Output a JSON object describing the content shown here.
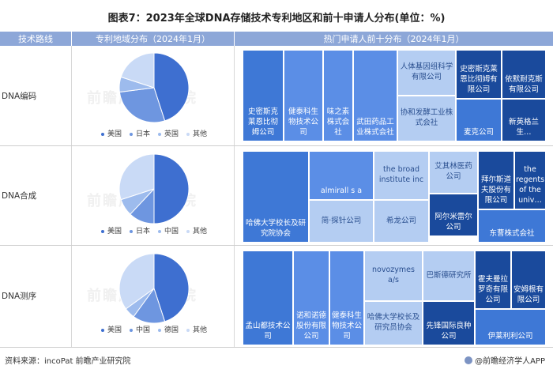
{
  "title": "图表7：2023年全球DNA存储技术专利地区和前十申请人分布(单位：%)",
  "headers": {
    "col1": "技术路线",
    "col2": "专利地域分布（2024年1月）",
    "col3": "热门申请人前十分布（2024年1月）"
  },
  "footer": {
    "source": "资料来源：incoPat 前瞻产业研究院",
    "brand": "@前瞻经济学人APP"
  },
  "watermark": "前瞻产业研究院",
  "colors": {
    "dark": "#1a4a9c",
    "mid": "#3e78d6",
    "blue": "#5b8ee6",
    "light": "#b4cdf2",
    "header": "#8da7d8"
  },
  "chart_data": [
    {
      "type": "pie",
      "route": "DNA编码",
      "title": "",
      "categories": [
        "美国",
        "日本",
        "英国",
        "其他"
      ],
      "values": [
        45,
        28,
        7,
        20
      ],
      "colors": [
        "#3e6fd0",
        "#6e96e0",
        "#9dbbed",
        "#c9daf6"
      ]
    },
    {
      "type": "pie",
      "route": "DNA合成",
      "title": "",
      "categories": [
        "美国",
        "日本",
        "中国",
        "其他"
      ],
      "values": [
        50,
        12,
        8,
        30
      ],
      "colors": [
        "#3e6fd0",
        "#6e96e0",
        "#9dbbed",
        "#c9daf6"
      ]
    },
    {
      "type": "pie",
      "route": "DNA测序",
      "title": "",
      "categories": [
        "美国",
        "中国",
        "德国",
        "其他"
      ],
      "values": [
        45,
        15,
        5,
        35
      ],
      "colors": [
        "#3e6fd0",
        "#6e96e0",
        "#9dbbed",
        "#c9daf6"
      ]
    }
  ],
  "treemaps": [
    {
      "route": "DNA编码",
      "cells": [
        {
          "label": "史密斯克莱恩比彻姆公司",
          "shade": "mid"
        },
        {
          "label": "健泰科生物技术公司",
          "shade": "blue"
        },
        {
          "label": "味之素株式会社",
          "shade": "blue"
        },
        {
          "label": "武田药品工业株式会社",
          "shade": "blue"
        },
        {
          "label": "人体基因组科学有限公司",
          "shade": "light"
        },
        {
          "label": "协和发酵工业株式会社",
          "shade": "light"
        },
        {
          "label": "史密斯克莱恩比彻姆有限公司",
          "shade": "dark"
        },
        {
          "label": "依默耐克斯有限公司",
          "shade": "dark"
        },
        {
          "label": "麦克公司",
          "shade": "mid"
        },
        {
          "label": "新英格兰生…",
          "shade": "dark"
        }
      ]
    },
    {
      "route": "DNA合成",
      "cells": [
        {
          "label": "哈佛大学校长及研究院协会",
          "shade": "mid"
        },
        {
          "label": "almirall s a",
          "shade": "blue"
        },
        {
          "label": "简·探针公司",
          "shade": "light"
        },
        {
          "label": "the broad institute inc",
          "shade": "light"
        },
        {
          "label": "希龙公司",
          "shade": "light"
        },
        {
          "label": "艾其林医药公司",
          "shade": "light"
        },
        {
          "label": "阿尔米雷尔公司",
          "shade": "dark"
        },
        {
          "label": "拜尔斯道夫股份有限公司",
          "shade": "dark"
        },
        {
          "label": "the regents of the univ…",
          "shade": "dark"
        },
        {
          "label": "东曹株式会社",
          "shade": "mid"
        }
      ]
    },
    {
      "route": "DNA测序",
      "cells": [
        {
          "label": "孟山都技术公司",
          "shade": "mid"
        },
        {
          "label": "诺和诺德股份有限公司",
          "shade": "blue"
        },
        {
          "label": "健泰科生物技术公司",
          "shade": "blue"
        },
        {
          "label": "novozymes a/s",
          "shade": "light"
        },
        {
          "label": "哈佛大学校长及研究员协会",
          "shade": "light"
        },
        {
          "label": "巴斯德研究所",
          "shade": "light"
        },
        {
          "label": "先锋国际良种公司",
          "shade": "dark"
        },
        {
          "label": "霍夫曼拉罗奇有限公司",
          "shade": "dark"
        },
        {
          "label": "安姆根有限公司",
          "shade": "dark"
        },
        {
          "label": "伊莱利利公司",
          "shade": "mid"
        }
      ]
    }
  ]
}
